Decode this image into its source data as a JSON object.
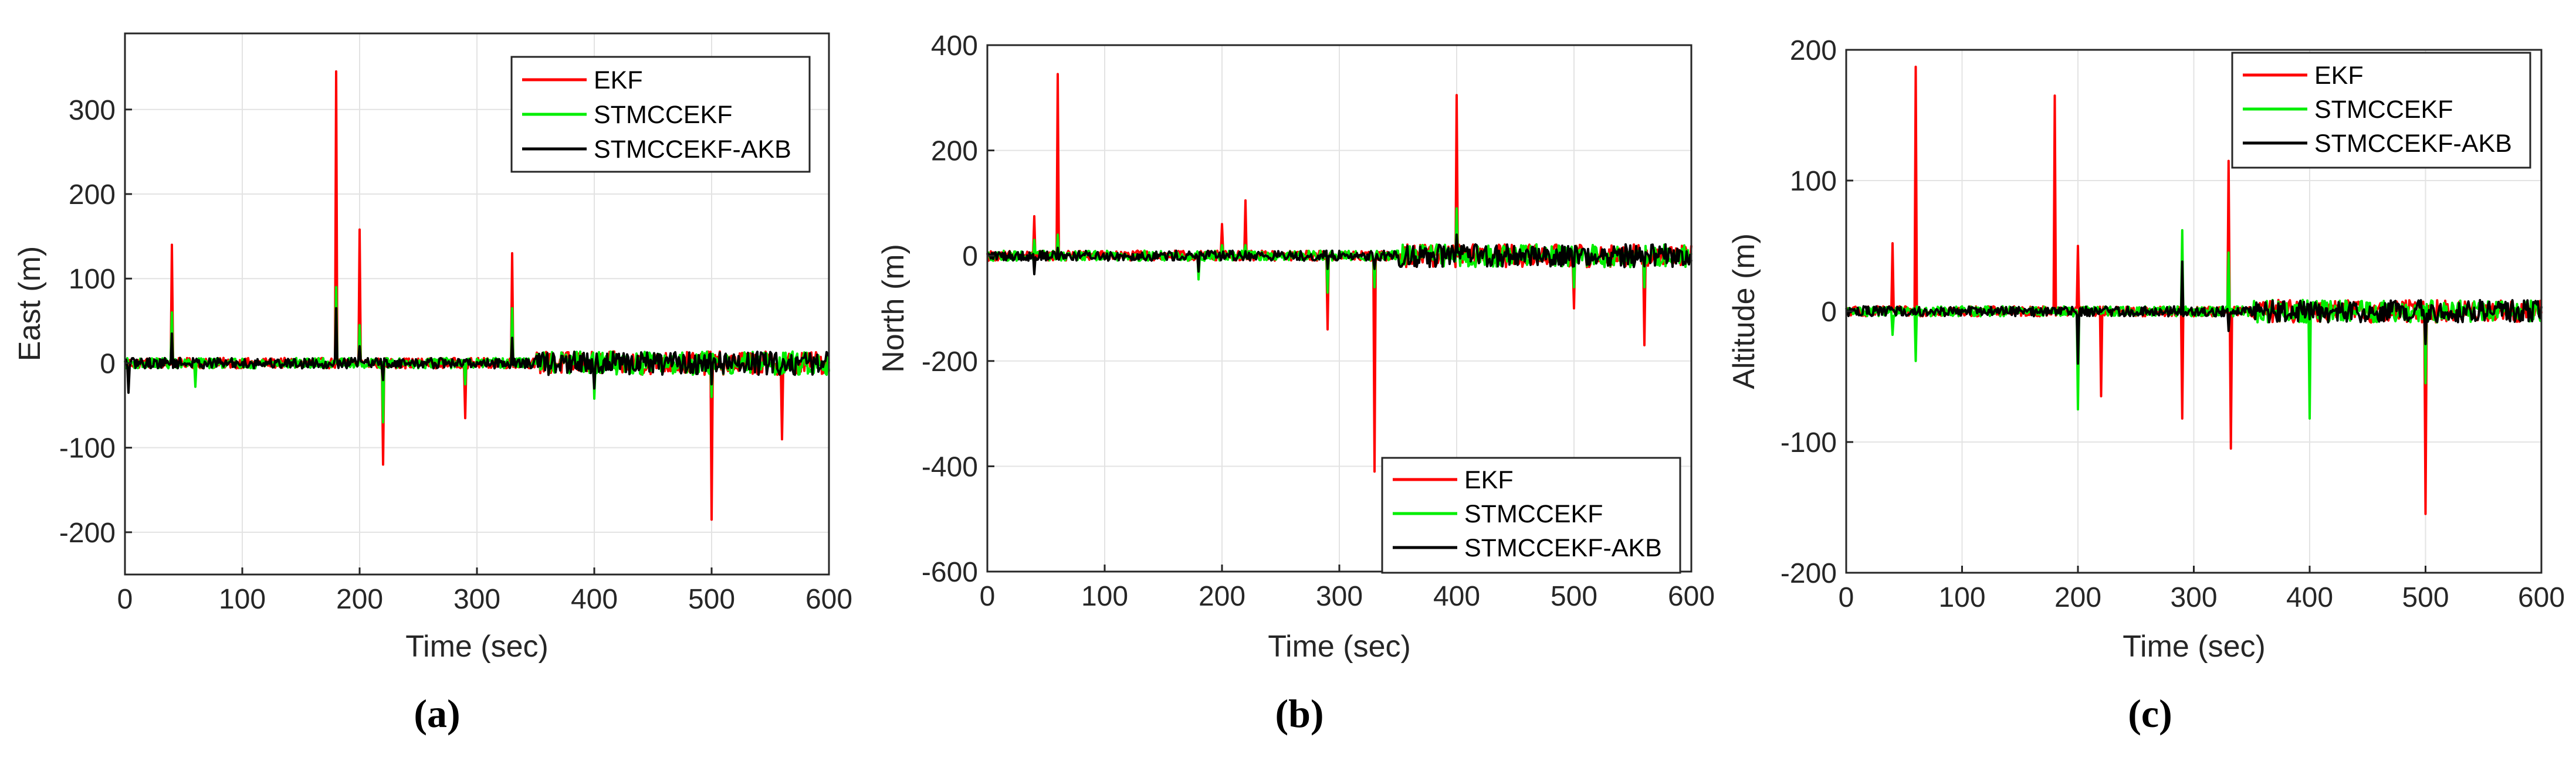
{
  "chart_data": [
    {
      "type": "line",
      "panel_label": "(a)",
      "xlabel": "Time (sec)",
      "ylabel": "East (m)",
      "xlim": [
        0,
        600
      ],
      "ylim": [
        -250,
        390
      ],
      "xticks": [
        0,
        100,
        200,
        300,
        400,
        500,
        600
      ],
      "yticks": [
        -200,
        -100,
        0,
        100,
        200,
        300
      ],
      "grid": true,
      "legend_position": "top-right",
      "series": [
        {
          "name": "EKF",
          "color": "#ff0000",
          "spikes": [
            [
              40,
              140
            ],
            [
              180,
              345
            ],
            [
              200,
              158
            ],
            [
              220,
              -120
            ],
            [
              290,
              -65
            ],
            [
              330,
              130
            ],
            [
              360,
              12
            ],
            [
              400,
              -15
            ],
            [
              500,
              -185
            ],
            [
              560,
              -90
            ]
          ]
        },
        {
          "name": "STMCCEKF",
          "color": "#00ee00",
          "spikes": [
            [
              40,
              60
            ],
            [
              60,
              -28
            ],
            [
              180,
              90
            ],
            [
              200,
              45
            ],
            [
              220,
              -70
            ],
            [
              290,
              -25
            ],
            [
              330,
              65
            ],
            [
              400,
              -42
            ],
            [
              500,
              -40
            ]
          ]
        },
        {
          "name": "STMCCEKF-AKB",
          "color": "#000000",
          "spikes": [
            [
              3,
              -35
            ],
            [
              40,
              35
            ],
            [
              180,
              65
            ],
            [
              200,
              20
            ],
            [
              220,
              -20
            ],
            [
              330,
              30
            ],
            [
              400,
              -30
            ],
            [
              500,
              -25
            ]
          ]
        }
      ]
    },
    {
      "type": "line",
      "panel_label": "(b)",
      "xlabel": "Time (sec)",
      "ylabel": "North (m)",
      "xlim": [
        0,
        600
      ],
      "ylim": [
        -600,
        400
      ],
      "xticks": [
        0,
        100,
        200,
        300,
        400,
        500,
        600
      ],
      "yticks": [
        -600,
        -400,
        -200,
        0,
        200,
        400
      ],
      "grid": true,
      "legend_position": "bottom-right",
      "series": [
        {
          "name": "EKF",
          "color": "#ff0000",
          "spikes": [
            [
              40,
              75
            ],
            [
              60,
              345
            ],
            [
              200,
              60
            ],
            [
              220,
              105
            ],
            [
              290,
              -140
            ],
            [
              330,
              -410
            ],
            [
              400,
              305
            ],
            [
              500,
              -100
            ],
            [
              560,
              -170
            ]
          ]
        },
        {
          "name": "STMCCEKF",
          "color": "#00ee00",
          "spikes": [
            [
              40,
              30
            ],
            [
              60,
              40
            ],
            [
              180,
              -45
            ],
            [
              200,
              20
            ],
            [
              220,
              20
            ],
            [
              290,
              -70
            ],
            [
              330,
              -60
            ],
            [
              400,
              90
            ],
            [
              500,
              -60
            ],
            [
              560,
              -60
            ]
          ]
        },
        {
          "name": "STMCCEKF-AKB",
          "color": "#000000",
          "spikes": [
            [
              40,
              -35
            ],
            [
              60,
              15
            ],
            [
              180,
              -30
            ],
            [
              290,
              -25
            ],
            [
              330,
              -25
            ],
            [
              400,
              40
            ],
            [
              500,
              -20
            ]
          ]
        }
      ]
    },
    {
      "type": "line",
      "panel_label": "(c)",
      "xlabel": "Time (sec)",
      "ylabel": "Altitude (m)",
      "xlim": [
        0,
        600
      ],
      "ylim": [
        -200,
        200
      ],
      "xticks": [
        0,
        100,
        200,
        300,
        400,
        500,
        600
      ],
      "yticks": [
        -200,
        -100,
        0,
        100,
        200
      ],
      "grid": true,
      "legend_position": "top-right",
      "series": [
        {
          "name": "EKF",
          "color": "#ff0000",
          "spikes": [
            [
              40,
              52
            ],
            [
              60,
              187
            ],
            [
              180,
              165
            ],
            [
              200,
              50
            ],
            [
              220,
              -65
            ],
            [
              290,
              -82
            ],
            [
              330,
              115
            ],
            [
              332,
              -105
            ],
            [
              500,
              -155
            ]
          ]
        },
        {
          "name": "STMCCEKF",
          "color": "#00ee00",
          "spikes": [
            [
              40,
              -18
            ],
            [
              60,
              -38
            ],
            [
              200,
              -75
            ],
            [
              290,
              62
            ],
            [
              330,
              45
            ],
            [
              400,
              -82
            ],
            [
              500,
              -55
            ]
          ]
        },
        {
          "name": "STMCCEKF-AKB",
          "color": "#000000",
          "spikes": [
            [
              200,
              -40
            ],
            [
              290,
              38
            ],
            [
              330,
              -15
            ],
            [
              500,
              -25
            ]
          ]
        }
      ]
    }
  ]
}
